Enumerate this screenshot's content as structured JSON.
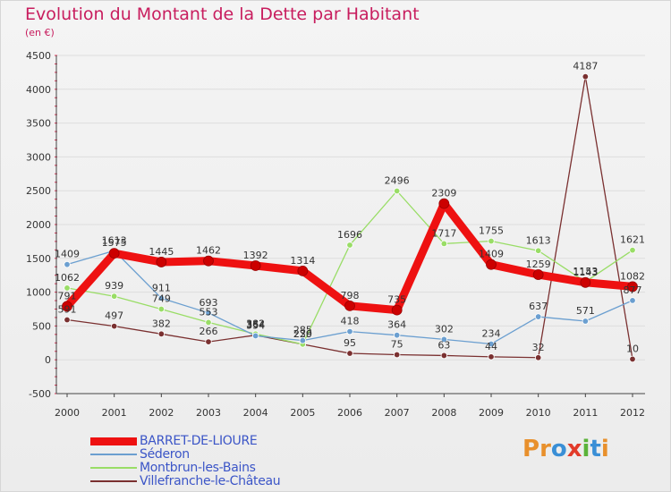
{
  "header": {
    "title": "Evolution du Montant de la Dette par Habitant",
    "subtitle": "(en €)"
  },
  "brand": {
    "letters": [
      "P",
      "r",
      "o",
      "x",
      "i",
      "t",
      "i"
    ],
    "colors": [
      "#e8902c",
      "#e8902c",
      "#3a8fd6",
      "#e23b2a",
      "#5bb33a",
      "#3a8fd6",
      "#e8902c"
    ]
  },
  "colors": {
    "title": "#c81d5e",
    "axis_text": "#333333",
    "grid": "#dddddd"
  },
  "chart_data": {
    "type": "line",
    "title": "Evolution du Montant de la Dette par Habitant",
    "subtitle": "(en €)",
    "xlabel": "",
    "ylabel": "",
    "x": [
      "2000",
      "2001",
      "2002",
      "2003",
      "2004",
      "2005",
      "2006",
      "2007",
      "2008",
      "2009",
      "2010",
      "2011",
      "2012"
    ],
    "ylim": [
      -500,
      4500
    ],
    "yticks": [
      -500,
      0,
      500,
      1000,
      1500,
      2000,
      2500,
      3000,
      3500,
      4000,
      4500
    ],
    "grid": true,
    "legend_position": "bottom-left",
    "series": [
      {
        "name": "BARRET-DE-LIOURE",
        "color": "#ee1111",
        "width": 9,
        "values": [
          791,
          1575,
          1445,
          1462,
          1392,
          1314,
          798,
          735,
          2309,
          1409,
          1259,
          1143,
          1082
        ]
      },
      {
        "name": "Séderon",
        "color": "#6b9fd0",
        "width": 1.3,
        "values": [
          1409,
          1613,
          911,
          693,
          354,
          285,
          418,
          364,
          302,
          234,
          637,
          571,
          877
        ]
      },
      {
        "name": "Montbrun-les-Bains",
        "color": "#99dd66",
        "width": 1.3,
        "values": [
          1062,
          939,
          749,
          553,
          382,
          230,
          1696,
          2496,
          1717,
          1755,
          1613,
          1153,
          1621
        ]
      },
      {
        "name": "Villefranche-le-Château",
        "color": "#7a3030",
        "width": 1.3,
        "values": [
          591,
          497,
          382,
          266,
          364,
          229,
          95,
          75,
          63,
          44,
          32,
          4187,
          10
        ]
      }
    ]
  }
}
